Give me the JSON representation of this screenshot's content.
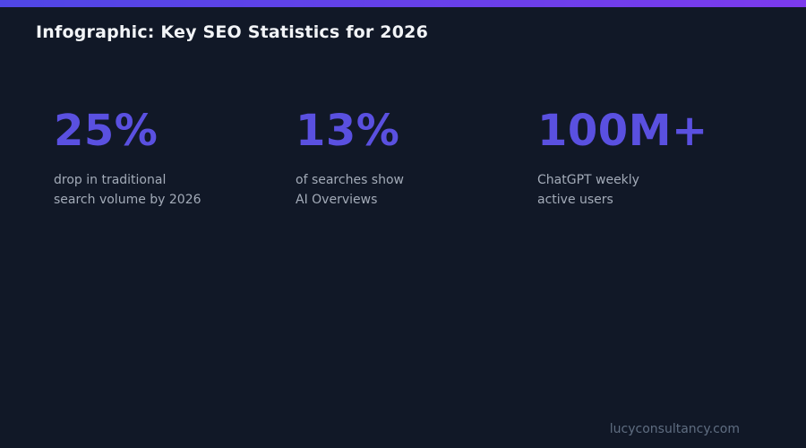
{
  "header": {
    "title": "Infographic: Key SEO Statistics for 2026"
  },
  "stats": [
    {
      "value": "25%",
      "description_line1": "drop in traditional",
      "description_line2": "search volume by 2026"
    },
    {
      "value": "13%",
      "description_line1": "of searches show",
      "description_line2": "AI Overviews"
    },
    {
      "value": "100M+",
      "description_line1": "ChatGPT weekly",
      "description_line2": "active users"
    }
  ],
  "footer": {
    "watermark": "lucyconsultancy.com"
  },
  "colors": {
    "background": "#111827",
    "stat_accent": "#5a50e0",
    "topbar_gradient_from": "#4f46e5",
    "topbar_gradient_to": "#7c3aed",
    "title_text": "#f2f4f7",
    "subtitle_text": "#a3abb8",
    "footer_text": "#5f6d81"
  },
  "chart_data": {
    "type": "table",
    "title": "Infographic: Key SEO Statistics for 2026",
    "categories": [
      "drop in traditional search volume by 2026",
      "of searches show AI Overviews",
      "ChatGPT weekly active users"
    ],
    "values": [
      "25%",
      "13%",
      "100M+"
    ],
    "legend_position": "none",
    "grid": false
  }
}
